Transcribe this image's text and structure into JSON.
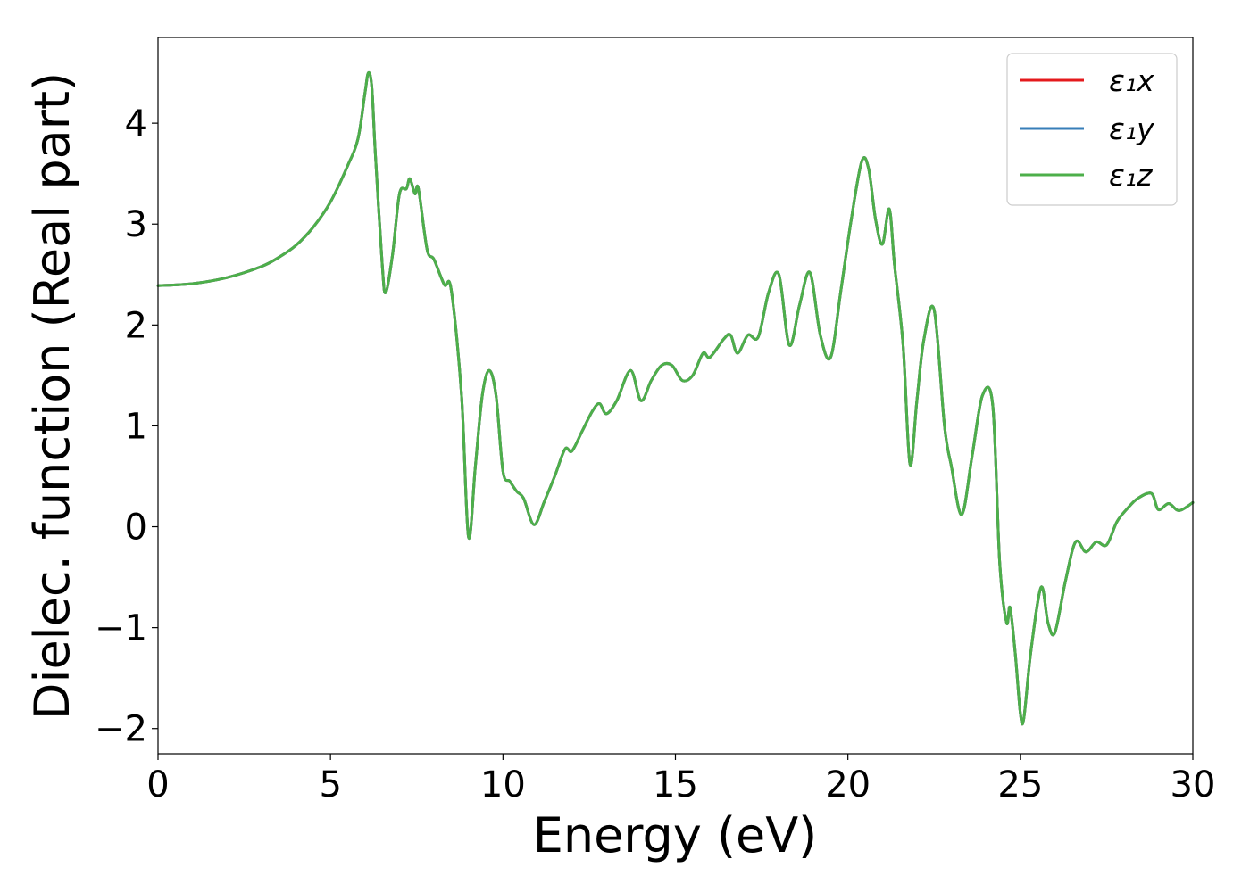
{
  "chart_data": {
    "type": "line",
    "title": "",
    "xlabel": "Energy (eV)",
    "ylabel": "Dielec. function (Real part)",
    "xlim": [
      0,
      30
    ],
    "ylim": [
      -2.25,
      4.85
    ],
    "xticks": [
      0,
      5,
      10,
      15,
      20,
      25,
      30
    ],
    "yticks": [
      -2,
      -1,
      0,
      1,
      2,
      3,
      4
    ],
    "ytick_labels": [
      "−2",
      "−1",
      "0",
      "1",
      "2",
      "3",
      "4"
    ],
    "grid": false,
    "legend_position": "top-right",
    "series": [
      {
        "name": "ε₁x",
        "color": "#e41a1c",
        "x": [
          0,
          1,
          2,
          3,
          3.5,
          4,
          4.5,
          5,
          5.5,
          5.8,
          6.0,
          6.1,
          6.2,
          6.3,
          6.5,
          6.6,
          6.8,
          7.0,
          7.2,
          7.3,
          7.45,
          7.55,
          7.8,
          8.0,
          8.3,
          8.5,
          8.8,
          9.0,
          9.2,
          9.4,
          9.6,
          9.8,
          10.0,
          10.2,
          10.4,
          10.6,
          10.9,
          11.2,
          11.5,
          11.8,
          12.0,
          12.3,
          12.6,
          12.8,
          13.0,
          13.3,
          13.7,
          14.0,
          14.3,
          14.6,
          14.9,
          15.2,
          15.5,
          15.8,
          16.0,
          16.4,
          16.6,
          16.8,
          17.1,
          17.4,
          17.7,
          18.0,
          18.3,
          18.6,
          18.9,
          19.2,
          19.5,
          19.8,
          20.1,
          20.4,
          20.6,
          20.8,
          21.0,
          21.2,
          21.35,
          21.6,
          21.8,
          22.0,
          22.2,
          22.5,
          22.8,
          23.0,
          23.3,
          23.6,
          23.9,
          24.2,
          24.4,
          24.6,
          24.7,
          24.85,
          25.0,
          25.1,
          25.3,
          25.6,
          25.8,
          26.0,
          26.3,
          26.6,
          26.9,
          27.2,
          27.5,
          27.8,
          28.1,
          28.4,
          28.8,
          29.0,
          29.3,
          29.6,
          30.0
        ],
        "y": [
          2.39,
          2.41,
          2.47,
          2.58,
          2.67,
          2.79,
          2.97,
          3.22,
          3.58,
          3.85,
          4.3,
          4.5,
          4.35,
          3.7,
          2.6,
          2.32,
          2.7,
          3.3,
          3.35,
          3.45,
          3.3,
          3.35,
          2.75,
          2.65,
          2.4,
          2.35,
          1.3,
          -0.1,
          0.6,
          1.3,
          1.55,
          1.3,
          0.55,
          0.45,
          0.35,
          0.28,
          0.02,
          0.25,
          0.5,
          0.77,
          0.75,
          0.95,
          1.15,
          1.22,
          1.12,
          1.25,
          1.55,
          1.25,
          1.45,
          1.6,
          1.6,
          1.45,
          1.5,
          1.72,
          1.68,
          1.86,
          1.9,
          1.72,
          1.9,
          1.88,
          2.32,
          2.5,
          1.8,
          2.2,
          2.52,
          1.9,
          1.68,
          2.35,
          3.05,
          3.62,
          3.55,
          3.05,
          2.8,
          3.15,
          2.6,
          1.8,
          0.62,
          1.25,
          1.85,
          2.15,
          1.0,
          0.6,
          0.12,
          0.7,
          1.3,
          1.2,
          -0.35,
          -0.95,
          -0.8,
          -1.25,
          -1.85,
          -1.9,
          -1.25,
          -0.6,
          -0.95,
          -1.05,
          -0.55,
          -0.15,
          -0.25,
          -0.15,
          -0.18,
          0.05,
          0.18,
          0.28,
          0.33,
          0.17,
          0.23,
          0.16,
          0.24
        ]
      },
      {
        "name": "ε₁y",
        "color": "#377eb8",
        "x": [
          0,
          1,
          2,
          3,
          3.5,
          4,
          4.5,
          5,
          5.5,
          5.8,
          6.0,
          6.1,
          6.2,
          6.3,
          6.5,
          6.6,
          6.8,
          7.0,
          7.2,
          7.3,
          7.45,
          7.55,
          7.8,
          8.0,
          8.3,
          8.5,
          8.8,
          9.0,
          9.2,
          9.4,
          9.6,
          9.8,
          10.0,
          10.2,
          10.4,
          10.6,
          10.9,
          11.2,
          11.5,
          11.8,
          12.0,
          12.3,
          12.6,
          12.8,
          13.0,
          13.3,
          13.7,
          14.0,
          14.3,
          14.6,
          14.9,
          15.2,
          15.5,
          15.8,
          16.0,
          16.4,
          16.6,
          16.8,
          17.1,
          17.4,
          17.7,
          18.0,
          18.3,
          18.6,
          18.9,
          19.2,
          19.5,
          19.8,
          20.1,
          20.4,
          20.6,
          20.8,
          21.0,
          21.2,
          21.35,
          21.6,
          21.8,
          22.0,
          22.2,
          22.5,
          22.8,
          23.0,
          23.3,
          23.6,
          23.9,
          24.2,
          24.4,
          24.6,
          24.7,
          24.85,
          25.0,
          25.1,
          25.3,
          25.6,
          25.8,
          26.0,
          26.3,
          26.6,
          26.9,
          27.2,
          27.5,
          27.8,
          28.1,
          28.4,
          28.8,
          29.0,
          29.3,
          29.6,
          30.0
        ],
        "y": [
          2.39,
          2.41,
          2.47,
          2.58,
          2.67,
          2.79,
          2.97,
          3.22,
          3.58,
          3.85,
          4.3,
          4.5,
          4.35,
          3.7,
          2.6,
          2.32,
          2.7,
          3.3,
          3.35,
          3.45,
          3.3,
          3.35,
          2.75,
          2.65,
          2.4,
          2.35,
          1.3,
          -0.1,
          0.6,
          1.3,
          1.55,
          1.3,
          0.55,
          0.45,
          0.35,
          0.28,
          0.02,
          0.25,
          0.5,
          0.77,
          0.75,
          0.95,
          1.15,
          1.22,
          1.12,
          1.25,
          1.55,
          1.25,
          1.45,
          1.6,
          1.6,
          1.45,
          1.5,
          1.72,
          1.68,
          1.86,
          1.9,
          1.72,
          1.9,
          1.88,
          2.32,
          2.5,
          1.8,
          2.2,
          2.52,
          1.9,
          1.68,
          2.35,
          3.05,
          3.62,
          3.55,
          3.05,
          2.8,
          3.15,
          2.6,
          1.8,
          0.62,
          1.25,
          1.85,
          2.15,
          1.0,
          0.6,
          0.12,
          0.7,
          1.3,
          1.2,
          -0.35,
          -0.95,
          -0.8,
          -1.25,
          -1.85,
          -1.9,
          -1.25,
          -0.6,
          -0.95,
          -1.05,
          -0.55,
          -0.15,
          -0.25,
          -0.15,
          -0.18,
          0.05,
          0.18,
          0.28,
          0.33,
          0.17,
          0.23,
          0.16,
          0.24
        ]
      },
      {
        "name": "ε₁z",
        "color": "#4daf4a",
        "x": [
          0,
          1,
          2,
          3,
          3.5,
          4,
          4.5,
          5,
          5.5,
          5.8,
          6.0,
          6.1,
          6.2,
          6.3,
          6.5,
          6.6,
          6.8,
          7.0,
          7.2,
          7.3,
          7.45,
          7.55,
          7.8,
          8.0,
          8.3,
          8.5,
          8.8,
          9.0,
          9.2,
          9.4,
          9.6,
          9.8,
          10.0,
          10.2,
          10.4,
          10.6,
          10.9,
          11.2,
          11.5,
          11.8,
          12.0,
          12.3,
          12.6,
          12.8,
          13.0,
          13.3,
          13.7,
          14.0,
          14.3,
          14.6,
          14.9,
          15.2,
          15.5,
          15.8,
          16.0,
          16.4,
          16.6,
          16.8,
          17.1,
          17.4,
          17.7,
          18.0,
          18.3,
          18.6,
          18.9,
          19.2,
          19.5,
          19.8,
          20.1,
          20.4,
          20.6,
          20.8,
          21.0,
          21.2,
          21.35,
          21.6,
          21.8,
          22.0,
          22.2,
          22.5,
          22.8,
          23.0,
          23.3,
          23.6,
          23.9,
          24.2,
          24.4,
          24.6,
          24.7,
          24.85,
          25.0,
          25.1,
          25.3,
          25.6,
          25.8,
          26.0,
          26.3,
          26.6,
          26.9,
          27.2,
          27.5,
          27.8,
          28.1,
          28.4,
          28.8,
          29.0,
          29.3,
          29.6,
          30.0
        ],
        "y": [
          2.39,
          2.41,
          2.47,
          2.58,
          2.67,
          2.79,
          2.97,
          3.22,
          3.58,
          3.85,
          4.3,
          4.5,
          4.35,
          3.7,
          2.6,
          2.32,
          2.7,
          3.3,
          3.35,
          3.45,
          3.3,
          3.35,
          2.75,
          2.65,
          2.4,
          2.35,
          1.3,
          -0.1,
          0.6,
          1.3,
          1.55,
          1.3,
          0.55,
          0.45,
          0.35,
          0.28,
          0.02,
          0.25,
          0.5,
          0.77,
          0.75,
          0.95,
          1.15,
          1.22,
          1.12,
          1.25,
          1.55,
          1.25,
          1.45,
          1.6,
          1.6,
          1.45,
          1.5,
          1.72,
          1.68,
          1.86,
          1.9,
          1.72,
          1.9,
          1.88,
          2.32,
          2.5,
          1.8,
          2.2,
          2.52,
          1.9,
          1.68,
          2.35,
          3.05,
          3.62,
          3.55,
          3.05,
          2.8,
          3.15,
          2.6,
          1.8,
          0.62,
          1.25,
          1.85,
          2.15,
          1.0,
          0.6,
          0.12,
          0.7,
          1.3,
          1.2,
          -0.35,
          -0.95,
          -0.8,
          -1.25,
          -1.85,
          -1.9,
          -1.25,
          -0.6,
          -0.95,
          -1.05,
          -0.55,
          -0.15,
          -0.25,
          -0.15,
          -0.18,
          0.05,
          0.18,
          0.28,
          0.33,
          0.17,
          0.23,
          0.16,
          0.24
        ]
      }
    ]
  }
}
